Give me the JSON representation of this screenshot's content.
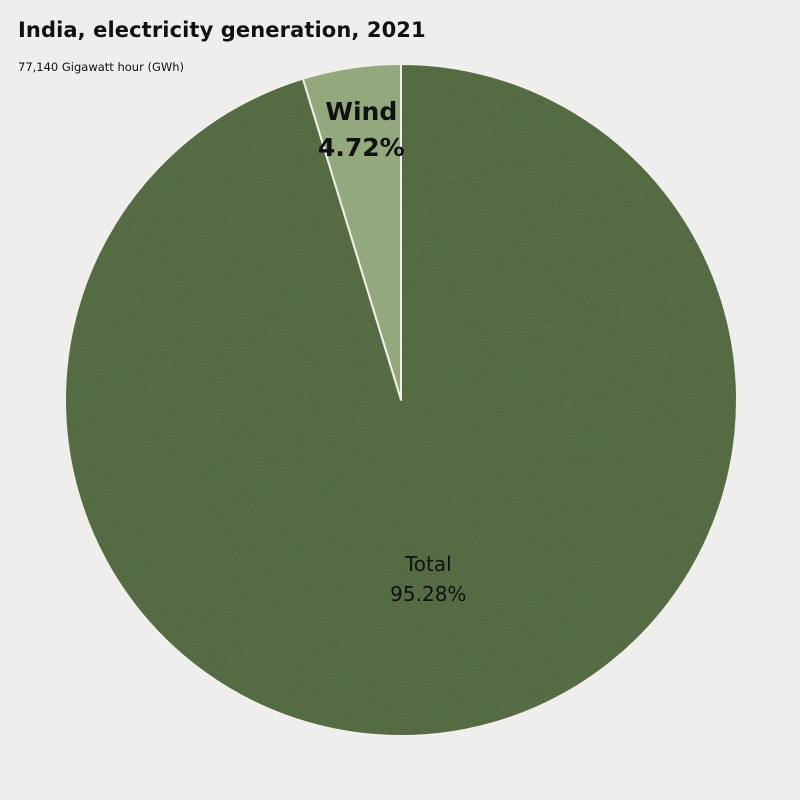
{
  "chart_data": {
    "type": "pie",
    "title": "India, electricity generation, 2021",
    "subtitle": "77,140 Gigawatt hour (GWh)",
    "slices": [
      {
        "label": "Wind",
        "percent_label": "4.72%",
        "value": 4.72,
        "color": "#8fa878",
        "label_weight": "bold"
      },
      {
        "label": "Total",
        "percent_label": "95.28%",
        "value": 95.28,
        "color": "#4a6533",
        "label_weight": "normal"
      }
    ],
    "start_angle_deg": 0,
    "direction": "counterclockwise",
    "slice_border_color": "#f4f2ee"
  }
}
